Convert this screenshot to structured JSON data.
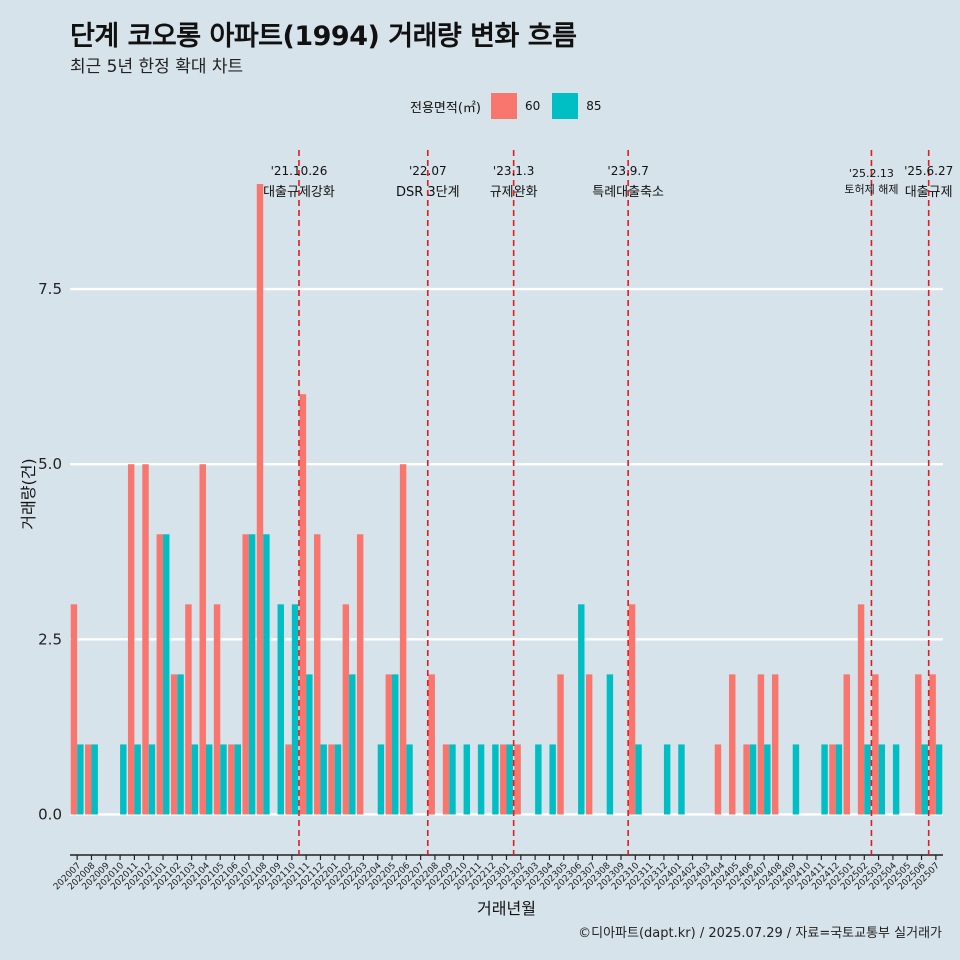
{
  "title": "단계 코오롱 아파트(1994) 거래량 변화 흐름",
  "subtitle": "최근 5년 한정 확대 차트",
  "caption": "©디아파트(dapt.kr) / 2025.07.29 / 자료=국토교통부 실거래가",
  "legend": {
    "title": "전용면적(㎡)",
    "items": [
      {
        "label": "60",
        "color": "#f8766d"
      },
      {
        "label": "85",
        "color": "#00bfc4"
      }
    ]
  },
  "chart_data": {
    "type": "bar",
    "xlabel": "거래년월",
    "ylabel": "거래량(건)",
    "ylim": [
      -0.45,
      9.6
    ],
    "yticks": [
      "0.0",
      "2.5",
      "5.0",
      "7.5"
    ],
    "ytick_values": [
      0,
      2.5,
      5,
      7.5
    ],
    "grid": true,
    "categories": [
      "202007",
      "202008",
      "202009",
      "202010",
      "202011",
      "202012",
      "202101",
      "202102",
      "202103",
      "202104",
      "202105",
      "202106",
      "202107",
      "202108",
      "202109",
      "202110",
      "202111",
      "202112",
      "202201",
      "202202",
      "202203",
      "202204",
      "202205",
      "202206",
      "202207",
      "202208",
      "202209",
      "202210",
      "202211",
      "202212",
      "202301",
      "202302",
      "202303",
      "202304",
      "202305",
      "202306",
      "202307",
      "202308",
      "202309",
      "202310",
      "202311",
      "202312",
      "202401",
      "202402",
      "202403",
      "202404",
      "202405",
      "202406",
      "202407",
      "202408",
      "202409",
      "202410",
      "202411",
      "202412",
      "202501",
      "202502",
      "202503",
      "202504",
      "202505",
      "202506",
      "202507"
    ],
    "series": [
      {
        "name": "60",
        "color": "#f8766d",
        "values": [
          3,
          1,
          0,
          0,
          5,
          5,
          4,
          2,
          3,
          5,
          3,
          1,
          4,
          9,
          0,
          1,
          6,
          4,
          1,
          3,
          4,
          0,
          2,
          5,
          0,
          2,
          1,
          0,
          0,
          0,
          1,
          1,
          0,
          0,
          2,
          0,
          2,
          0,
          0,
          3,
          0,
          0,
          0,
          0,
          0,
          1,
          2,
          1,
          2,
          2,
          0,
          0,
          0,
          1,
          2,
          3,
          2,
          0,
          0,
          2,
          2
        ]
      },
      {
        "name": "85",
        "color": "#00bfc4",
        "values": [
          1,
          1,
          0,
          1,
          1,
          1,
          4,
          2,
          1,
          1,
          1,
          1,
          4,
          4,
          3,
          3,
          2,
          1,
          1,
          2,
          0,
          1,
          2,
          1,
          0,
          0,
          1,
          1,
          1,
          1,
          1,
          0,
          1,
          1,
          0,
          3,
          0,
          2,
          0,
          1,
          0,
          1,
          1,
          0,
          0,
          0,
          0,
          1,
          1,
          0,
          1,
          0,
          1,
          1,
          0,
          1,
          1,
          1,
          0,
          1,
          1
        ]
      }
    ],
    "events": [
      {
        "after": "202110",
        "date": "'21.10.26",
        "label": "대출규제강화"
      },
      {
        "after": "202207",
        "date": "'22.07",
        "label": "DSR 3단계"
      },
      {
        "after": "202301",
        "date": "'23.1.3",
        "label": "규제완화"
      },
      {
        "after": "202309",
        "date": "'23.9.7",
        "label": "특례대출축소"
      },
      {
        "after": "202502",
        "date": "'25.2.13",
        "label": "토허제 해제"
      },
      {
        "after": "202506",
        "date": "'25.6.27",
        "label": "대출규제"
      }
    ]
  }
}
